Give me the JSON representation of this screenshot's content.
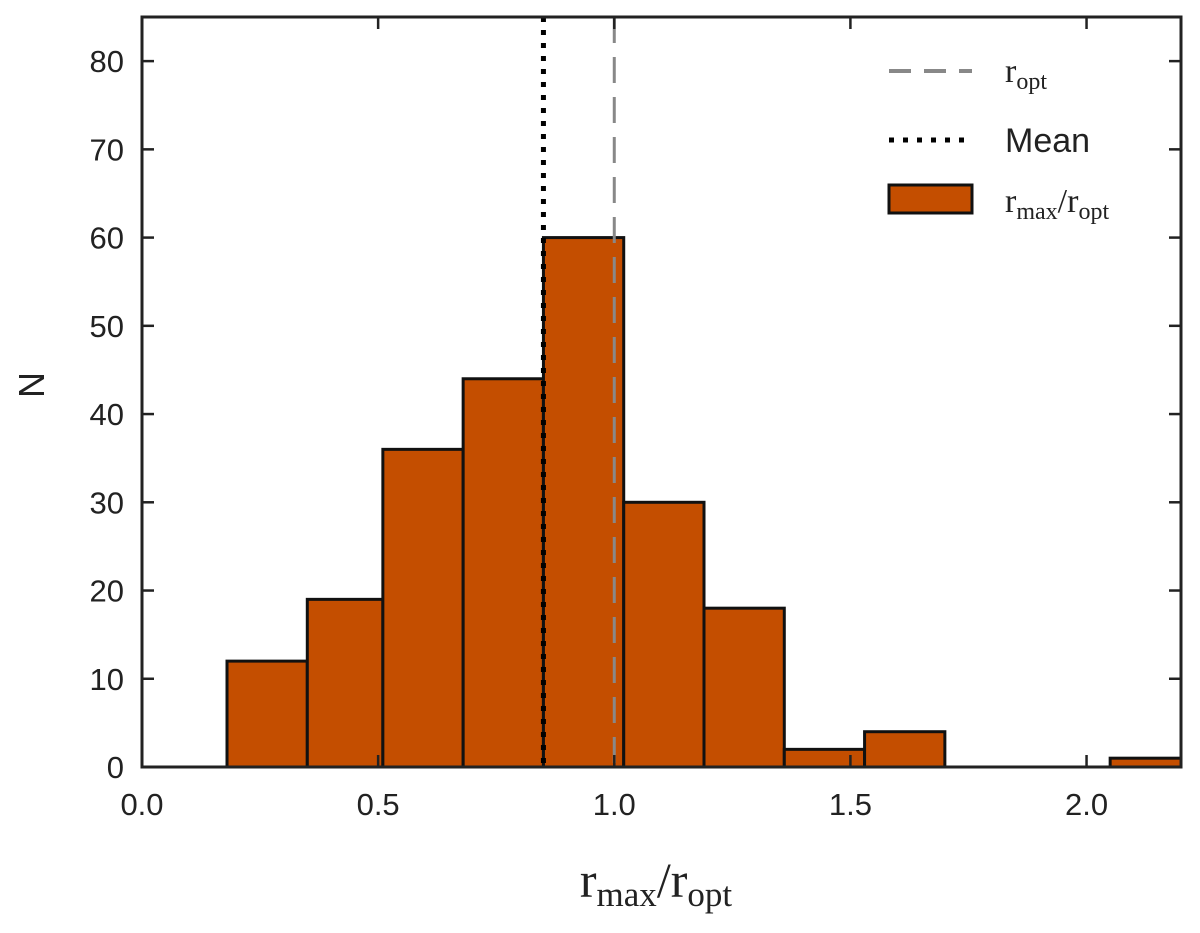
{
  "chart_data": {
    "type": "bar",
    "x_range": [
      0.0,
      2.2
    ],
    "ylim": [
      0,
      85
    ],
    "x_ticks": [
      0.0,
      0.5,
      1.0,
      1.5,
      2.0
    ],
    "x_tick_labels": [
      "0.0",
      "0.5",
      "1.0",
      "1.5",
      "2.0"
    ],
    "y_ticks": [
      0,
      10,
      20,
      30,
      40,
      50,
      60,
      70,
      80
    ],
    "y_tick_labels": [
      "0",
      "10",
      "20",
      "30",
      "40",
      "50",
      "60",
      "70",
      "80"
    ],
    "ylabel": "N",
    "xlabel": {
      "base1": "r",
      "sub1": "max",
      "slash": "/",
      "base2": "r",
      "sub2": "opt"
    },
    "bins": [
      {
        "x0": 0.18,
        "x1": 0.35,
        "count": 12
      },
      {
        "x0": 0.35,
        "x1": 0.51,
        "count": 19
      },
      {
        "x0": 0.51,
        "x1": 0.68,
        "count": 36
      },
      {
        "x0": 0.68,
        "x1": 0.85,
        "count": 44
      },
      {
        "x0": 0.85,
        "x1": 1.02,
        "count": 60
      },
      {
        "x0": 1.02,
        "x1": 1.19,
        "count": 30
      },
      {
        "x0": 1.19,
        "x1": 1.36,
        "count": 18
      },
      {
        "x0": 1.36,
        "x1": 1.53,
        "count": 2
      },
      {
        "x0": 1.53,
        "x1": 1.7,
        "count": 4
      },
      {
        "x0": 2.05,
        "x1": 2.22,
        "count": 1
      }
    ],
    "reference_lines": [
      {
        "name": "ropt",
        "x": 1.0,
        "style": "dashed",
        "color": "#888888"
      },
      {
        "name": "Mean",
        "x": 0.85,
        "style": "dotted",
        "color": "#000000"
      }
    ],
    "legend": {
      "position": "top-right",
      "entries": [
        {
          "kind": "dashed-line",
          "base": "r",
          "sub": "opt"
        },
        {
          "kind": "dotted-line",
          "text": "Mean"
        },
        {
          "kind": "patch",
          "base1": "r",
          "sub1": "max",
          "slash": "/",
          "base2": "r",
          "sub2": "opt"
        }
      ]
    },
    "bar_color": "#c44e00",
    "bar_edge_color": "#111111",
    "grid": false
  }
}
